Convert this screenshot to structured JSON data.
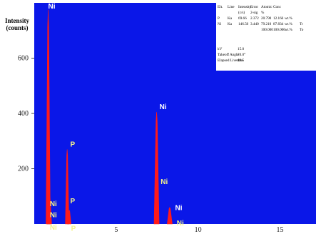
{
  "chart_data": {
    "type": "line",
    "ylabel_lines": [
      "Intensity",
      "(counts)"
    ],
    "xlim": [
      0,
      17.2
    ],
    "ylim": [
      0,
      800
    ],
    "x_ticks": [
      "5",
      "10",
      "15"
    ],
    "y_ticks": [
      "200",
      "400",
      "600"
    ],
    "colors": {
      "plot_bg": "#0a17e8",
      "spectrum": "#ff1a1a",
      "label_white": "#ffffff",
      "label_yellow": "#f4f48a"
    },
    "peaks": [
      {
        "x": 0.85,
        "y": 775,
        "w": 0.06
      },
      {
        "x": 0.93,
        "y": 110,
        "w": 0.06
      },
      {
        "x": 2.01,
        "y": 270,
        "w": 0.05
      },
      {
        "x": 2.14,
        "y": 50,
        "w": 0.05
      },
      {
        "x": 7.47,
        "y": 405,
        "w": 0.07
      },
      {
        "x": 8.27,
        "y": 60,
        "w": 0.07
      }
    ],
    "peak_labels": [
      {
        "text": "Ni",
        "x": 0.85,
        "y": 780,
        "color": "white"
      },
      {
        "text": "Ni",
        "x": 0.95,
        "y": 65,
        "color": "yellow"
      },
      {
        "text": "Ni",
        "x": 0.95,
        "y": 25,
        "color": "yellow"
      },
      {
        "text": "Ni",
        "x": 0.95,
        "y": -20,
        "color": "yellow"
      },
      {
        "text": "P",
        "x": 2.2,
        "y": 280,
        "color": "yellow"
      },
      {
        "text": "P",
        "x": 2.2,
        "y": 75,
        "color": "yellow"
      },
      {
        "text": "P",
        "x": 2.25,
        "y": -25,
        "color": "yellow"
      },
      {
        "text": "Ni",
        "x": 7.65,
        "y": 415,
        "color": "white"
      },
      {
        "text": "Ni",
        "x": 7.72,
        "y": 145,
        "color": "yellow"
      },
      {
        "text": "Ni",
        "x": 8.6,
        "y": 50,
        "color": "white"
      },
      {
        "text": "Ni",
        "x": 8.7,
        "y": -5,
        "color": "yellow"
      }
    ],
    "table": {
      "rows": [
        [
          "Elt.",
          "Line",
          "Intensity",
          "Error",
          "Atomic",
          "Conc",
          "",
          ""
        ],
        [
          "",
          "",
          "(c/s)",
          "2-sig",
          "%",
          "",
          "",
          ""
        ],
        [
          "P",
          "Ka",
          "69.66",
          "2.372",
          "20.790",
          "12.166",
          "wt.%",
          ""
        ],
        [
          "Ni",
          "Ka",
          "146.50",
          "3.440",
          "79.210",
          "87.834",
          "wt.%",
          "Tr"
        ],
        [
          "",
          "",
          "",
          "",
          "100.000",
          "100.000",
          "wt.%",
          "To"
        ]
      ],
      "params": [
        [
          "kV",
          "15.0"
        ],
        [
          "Takeoff Angle",
          "20.0°"
        ],
        [
          "Elapsed Livetime",
          "49.5"
        ]
      ]
    }
  }
}
